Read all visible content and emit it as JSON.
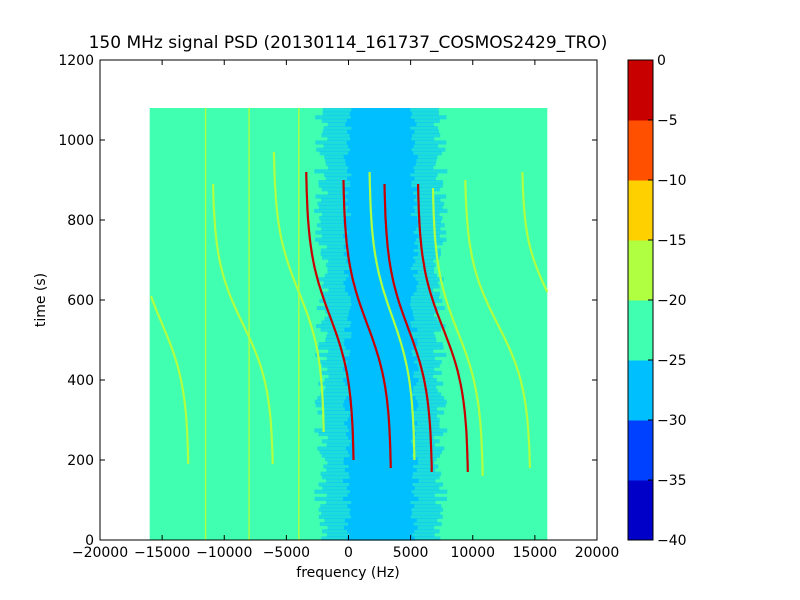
{
  "chart_data": {
    "type": "heatmap",
    "title": "150 MHz signal PSD (20130114_161737_COSMOS2429_TRO)",
    "xlabel": "frequency (Hz)",
    "ylabel": "time (s)",
    "xlim": [
      -20000,
      20000
    ],
    "ylim": [
      0,
      1200
    ],
    "xticks": [
      -20000,
      -15000,
      -10000,
      -5000,
      0,
      5000,
      10000,
      15000,
      20000
    ],
    "xtick_labels": [
      "−20000",
      "−15000",
      "−10000",
      "−5000",
      "0",
      "5000",
      "10000",
      "15000",
      "20000"
    ],
    "yticks": [
      0,
      200,
      400,
      600,
      800,
      1000,
      1200
    ],
    "ytick_labels": [
      "0",
      "200",
      "400",
      "600",
      "800",
      "1000",
      "1200"
    ],
    "data_extent": {
      "freq": [
        -16000,
        16000
      ],
      "time": [
        0,
        1080
      ]
    },
    "background_level": -22.5,
    "colormap": "jet",
    "colorbar": {
      "levels": [
        -40,
        -35,
        -30,
        -25,
        -20,
        -15,
        -10,
        -5,
        0
      ],
      "tick_labels": [
        "0",
        "−5",
        "−10",
        "−15",
        "−20",
        "−25",
        "−30",
        "−35",
        "−40"
      ],
      "colors": [
        "#0000c8",
        "#0040ff",
        "#00bfff",
        "#40ffb0",
        "#b0ff40",
        "#ffd000",
        "#ff5000",
        "#c80000"
      ]
    },
    "noise_band": {
      "freq_center": 2600,
      "outer_half_width": 4800,
      "inner_half_width": 2700,
      "outer_level": -27.5,
      "inner_level": -27.5
    },
    "series": [
      {
        "center_freq": -15000,
        "center_time": 540,
        "width": 4200,
        "duration": 700,
        "peak_level": -17
      },
      {
        "center_freq": -8500,
        "center_time": 540,
        "width": 4800,
        "duration": 700,
        "peak_level": -17
      },
      {
        "center_freq": -4000,
        "center_time": 620,
        "width": 4000,
        "duration": 700,
        "peak_level": -17
      },
      {
        "center_freq": -1500,
        "center_time": 560,
        "width": 3800,
        "duration": 720,
        "peak_level": -3
      },
      {
        "center_freq": 1500,
        "center_time": 540,
        "width": 3800,
        "duration": 720,
        "peak_level": -3
      },
      {
        "center_freq": 3500,
        "center_time": 560,
        "width": 3600,
        "duration": 720,
        "peak_level": -17
      },
      {
        "center_freq": 4800,
        "center_time": 530,
        "width": 3800,
        "duration": 720,
        "peak_level": -3
      },
      {
        "center_freq": 7600,
        "center_time": 530,
        "width": 4000,
        "duration": 720,
        "peak_level": -3
      },
      {
        "center_freq": 8800,
        "center_time": 520,
        "width": 4000,
        "duration": 720,
        "peak_level": -17
      },
      {
        "center_freq": 12000,
        "center_time": 540,
        "width": 5200,
        "duration": 720,
        "peak_level": -17
      },
      {
        "center_freq": 16000,
        "center_time": 620,
        "width": 4000,
        "duration": 600,
        "peak_level": -17
      }
    ],
    "vertical_lines": [
      {
        "freq": -8000,
        "level": -17
      },
      {
        "freq": -11500,
        "level": -17
      },
      {
        "freq": -4000,
        "level": -17
      }
    ],
    "grid": false,
    "legend": "colorbar-right"
  }
}
